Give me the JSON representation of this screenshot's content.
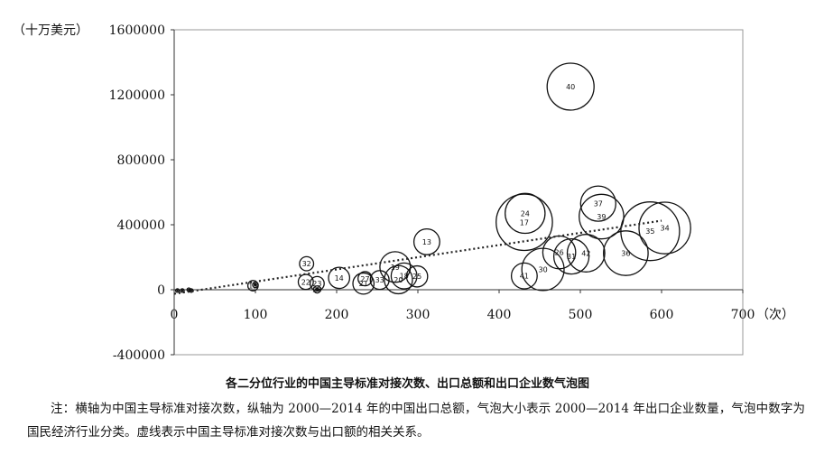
{
  "chart_data": {
    "type": "scatter",
    "subtype": "bubble",
    "y_unit_label": "（十万美元）",
    "x_unit_label": "（次）",
    "xlim": [
      0,
      700
    ],
    "ylim": [
      -400000,
      1600000
    ],
    "x_ticks": [
      "0",
      "100",
      "200",
      "300",
      "400",
      "500",
      "600",
      "700"
    ],
    "y_ticks": [
      "-400000",
      "0",
      "400000",
      "800000",
      "1200000",
      "1600000"
    ],
    "grid": false,
    "trendline": "dotted linear",
    "bubbles": [
      {
        "label": "40",
        "x": 488,
        "y": 1250000,
        "r": 1.0
      },
      {
        "label": "37",
        "x": 522,
        "y": 530000,
        "r": 0.75
      },
      {
        "label": "39",
        "x": 526,
        "y": 450000,
        "r": 0.95
      },
      {
        "label": "24",
        "x": 432,
        "y": 470000,
        "r": 0.85
      },
      {
        "label": "17",
        "x": 431,
        "y": 415000,
        "r": 1.2
      },
      {
        "label": "35",
        "x": 586,
        "y": 360000,
        "r": 1.25
      },
      {
        "label": "34",
        "x": 604,
        "y": 380000,
        "r": 1.1
      },
      {
        "label": "13",
        "x": 311,
        "y": 295000,
        "r": 0.55
      },
      {
        "label": "26",
        "x": 474,
        "y": 230000,
        "r": 0.7
      },
      {
        "label": "36",
        "x": 556,
        "y": 225000,
        "r": 0.95
      },
      {
        "label": "42",
        "x": 507,
        "y": 225000,
        "r": 0.8
      },
      {
        "label": "31",
        "x": 489,
        "y": 205000,
        "r": 0.75
      },
      {
        "label": "30",
        "x": 454,
        "y": 125000,
        "r": 0.9
      },
      {
        "label": "41",
        "x": 431,
        "y": 85000,
        "r": 0.55
      },
      {
        "label": "32",
        "x": 163,
        "y": 160000,
        "r": 0.3
      },
      {
        "label": "19",
        "x": 272,
        "y": 140000,
        "r": 0.65
      },
      {
        "label": "18",
        "x": 283,
        "y": 85000,
        "r": 0.55
      },
      {
        "label": "25",
        "x": 299,
        "y": 82000,
        "r": 0.45
      },
      {
        "label": "20",
        "x": 276,
        "y": 62000,
        "r": 0.6
      },
      {
        "label": "14",
        "x": 203,
        "y": 73000,
        "r": 0.45
      },
      {
        "label": "27",
        "x": 235,
        "y": 68000,
        "r": 0.3
      },
      {
        "label": "21",
        "x": 233,
        "y": 38000,
        "r": 0.45
      },
      {
        "label": "33",
        "x": 253,
        "y": 60000,
        "r": 0.4
      },
      {
        "label": "22",
        "x": 162,
        "y": 48000,
        "r": 0.32
      },
      {
        "label": "23",
        "x": 176,
        "y": 38000,
        "r": 0.3
      },
      {
        "label": "28",
        "x": 176,
        "y": 2000,
        "r": 0.15
      },
      {
        "label": "15",
        "x": 97,
        "y": 25000,
        "r": 0.22
      },
      {
        "label": "",
        "x": 100,
        "y": 30000,
        "r": 0.12
      },
      {
        "label": "",
        "x": 4,
        "y": -5000,
        "r": 0.05
      },
      {
        "label": "",
        "x": 10,
        "y": -5000,
        "r": 0.06
      },
      {
        "label": "",
        "x": 18,
        "y": 0,
        "r": 0.05
      },
      {
        "label": "",
        "x": 21,
        "y": -5000,
        "r": 0.06
      }
    ],
    "trend": {
      "x0": 0,
      "y0": -25000,
      "x1": 600,
      "y1": 425000
    }
  },
  "caption": "各二分位行业的中国主导标准对接次数、出口总额和出口企业数气泡图",
  "note": "注：横轴为中国主导标准对接次数，纵轴为 2000—2014 年的中国出口总额，气泡大小表示 2000—2014 年出口企业数量，气泡中数字为国民经济行业分类。虚线表示中国主导标准对接次数与出口额的相关关系。"
}
